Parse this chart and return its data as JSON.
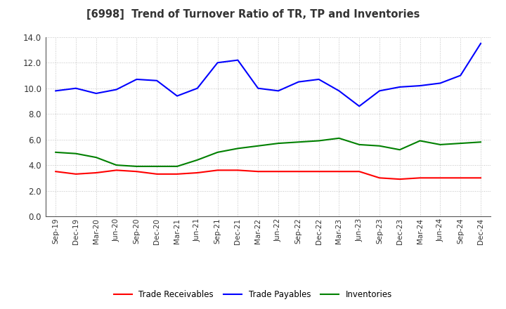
{
  "title": "[6998]  Trend of Turnover Ratio of TR, TP and Inventories",
  "labels": [
    "Sep-19",
    "Dec-19",
    "Mar-20",
    "Jun-20",
    "Sep-20",
    "Dec-20",
    "Mar-21",
    "Jun-21",
    "Sep-21",
    "Dec-21",
    "Mar-22",
    "Jun-22",
    "Sep-22",
    "Dec-22",
    "Mar-23",
    "Jun-23",
    "Sep-23",
    "Dec-23",
    "Mar-24",
    "Jun-24",
    "Sep-24",
    "Dec-24"
  ],
  "trade_receivables": [
    3.5,
    3.3,
    3.4,
    3.6,
    3.5,
    3.3,
    3.3,
    3.4,
    3.6,
    3.6,
    3.5,
    3.5,
    3.5,
    3.5,
    3.5,
    3.5,
    3.0,
    2.9,
    3.0,
    3.0,
    3.0,
    3.0
  ],
  "trade_payables": [
    9.8,
    10.0,
    9.6,
    9.9,
    10.7,
    10.6,
    9.4,
    10.0,
    12.0,
    12.2,
    10.0,
    9.8,
    10.5,
    10.7,
    9.8,
    8.6,
    9.8,
    10.1,
    10.2,
    10.4,
    11.0,
    13.5
  ],
  "inventories": [
    5.0,
    4.9,
    4.6,
    4.0,
    3.9,
    3.9,
    3.9,
    4.4,
    5.0,
    5.3,
    5.5,
    5.7,
    5.8,
    5.9,
    6.1,
    5.6,
    5.5,
    5.2,
    5.9,
    5.6,
    5.7,
    5.8
  ],
  "ylim": [
    0.0,
    14.0
  ],
  "yticks": [
    0.0,
    2.0,
    4.0,
    6.0,
    8.0,
    10.0,
    12.0,
    14.0
  ],
  "color_tr": "#ff0000",
  "color_tp": "#0000ff",
  "color_inv": "#008000",
  "legend_labels": [
    "Trade Receivables",
    "Trade Payables",
    "Inventories"
  ],
  "bg_color": "#ffffff",
  "grid_color": "#bbbbbb",
  "title_color": "#333333"
}
